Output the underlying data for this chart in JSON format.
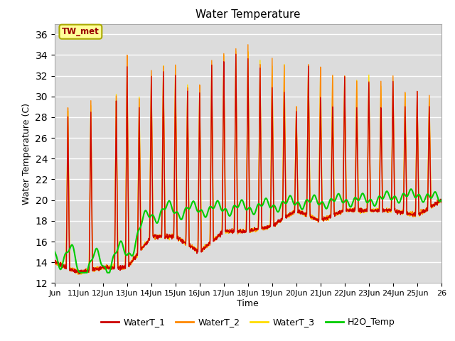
{
  "title": "Water Temperature",
  "xlabel": "Time",
  "ylabel": "Water Temperature (C)",
  "ylim": [
    12,
    37
  ],
  "yticks": [
    12,
    14,
    16,
    18,
    20,
    22,
    24,
    26,
    28,
    30,
    32,
    34,
    36
  ],
  "xlim_days": [
    0,
    16
  ],
  "x_tick_labels": [
    "Jun",
    "11Jun",
    "12Jun",
    "13Jun",
    "14Jun",
    "15Jun",
    "16Jun",
    "17Jun",
    "18Jun",
    "19Jun",
    "20Jun",
    "21Jun",
    "22Jun",
    "23Jun",
    "24Jun",
    "25Jun",
    "26"
  ],
  "x_tick_positions": [
    0,
    1,
    2,
    3,
    4,
    5,
    6,
    7,
    8,
    9,
    10,
    11,
    12,
    13,
    14,
    15,
    16
  ],
  "color_wt1": "#cc0000",
  "color_wt2": "#ff8800",
  "color_wt3": "#ffdd00",
  "color_h2o": "#00cc00",
  "bg_color": "#dcdcdc",
  "annotation_text": "TW_met",
  "annotation_color": "#990000",
  "annotation_bg": "#ffff99",
  "annotation_border": "#aaaa00",
  "linewidth": 1.0,
  "figsize": [
    6.4,
    4.8
  ],
  "dpi": 100
}
